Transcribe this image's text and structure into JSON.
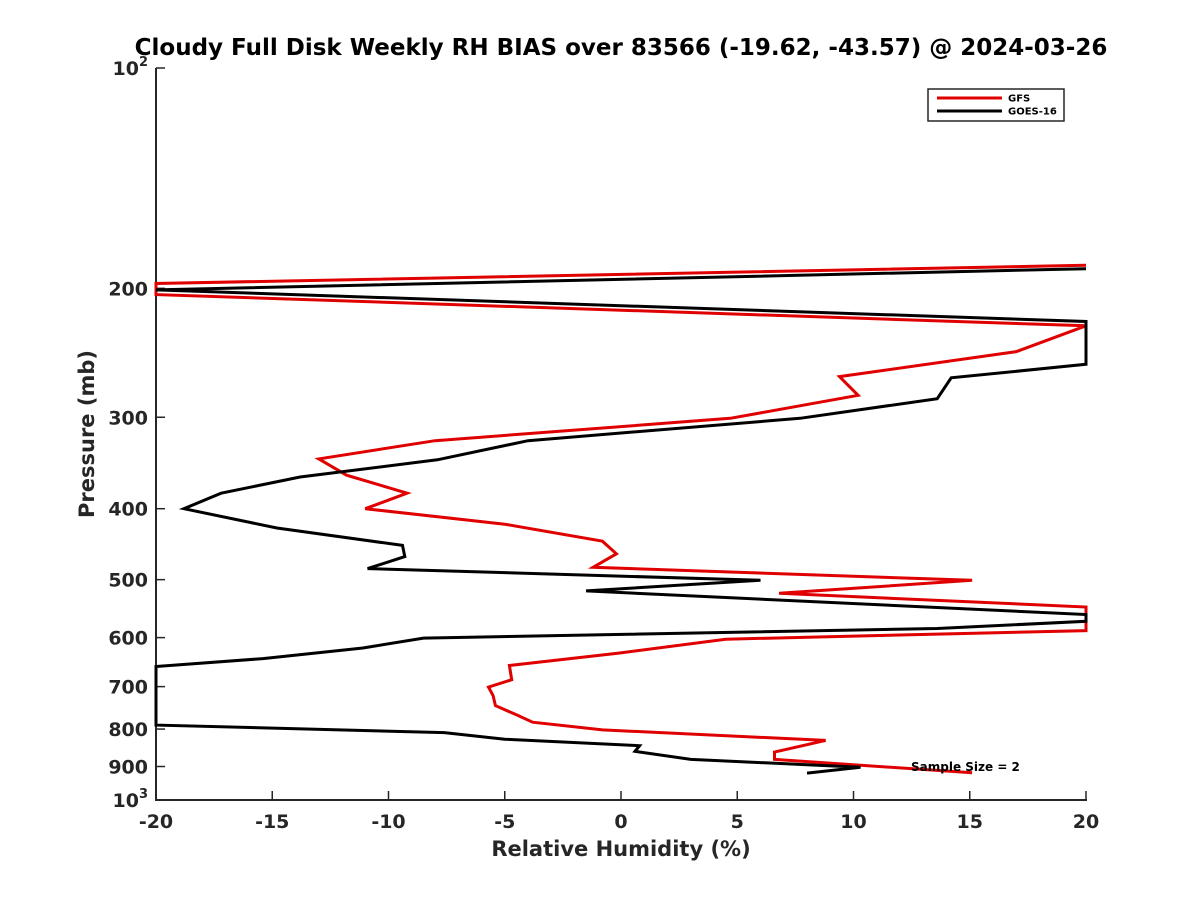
{
  "chart_data": {
    "type": "line",
    "title": "Cloudy Full Disk Weekly RH BIAS over 83566 (-19.62, -43.57) @ 2024-03-26",
    "xlabel": "Relative Humidity (%)",
    "ylabel": "Pressure (mb)",
    "xlim": [
      -20,
      20
    ],
    "ylim": [
      100,
      1000
    ],
    "y_scale": "log",
    "y_reversed": true,
    "x_ticks": [
      {
        "value": -20,
        "label": "-20"
      },
      {
        "value": -15,
        "label": "-15"
      },
      {
        "value": -10,
        "label": "-10"
      },
      {
        "value": -5,
        "label": "-5"
      },
      {
        "value": 0,
        "label": "0"
      },
      {
        "value": 5,
        "label": "5"
      },
      {
        "value": 10,
        "label": "10"
      },
      {
        "value": 15,
        "label": "15"
      },
      {
        "value": 20,
        "label": "20"
      }
    ],
    "y_ticks": [
      {
        "value": 100,
        "base": "10",
        "exp": "2"
      },
      {
        "value": 200,
        "label": "200"
      },
      {
        "value": 300,
        "label": "300"
      },
      {
        "value": 400,
        "label": "400"
      },
      {
        "value": 500,
        "label": "500"
      },
      {
        "value": 600,
        "label": "600"
      },
      {
        "value": 700,
        "label": "700"
      },
      {
        "value": 800,
        "label": "800"
      },
      {
        "value": 900,
        "label": "900"
      },
      {
        "value": 1000,
        "base": "10",
        "exp": "3"
      }
    ],
    "grid": false,
    "legend_position": "top-right",
    "series": [
      {
        "name": "GFS",
        "color": "#e00000",
        "points": [
          [
            20,
            186
          ],
          [
            -20,
            197
          ],
          [
            -20,
            204
          ],
          [
            20,
            225
          ],
          [
            17,
            244
          ],
          [
            9.4,
            264
          ],
          [
            10.2,
            280
          ],
          [
            4.7,
            301
          ],
          [
            -8,
            323
          ],
          [
            -13,
            342
          ],
          [
            -11.8,
            360
          ],
          [
            -9.2,
            381
          ],
          [
            -11,
            400
          ],
          [
            -5,
            420
          ],
          [
            -0.8,
            443
          ],
          [
            -0.2,
            461
          ],
          [
            -1.2,
            481
          ],
          [
            15.1,
            501
          ],
          [
            6.8,
            522
          ],
          [
            20,
            545
          ],
          [
            20,
            587
          ],
          [
            4.5,
            603
          ],
          [
            -0.1,
            630
          ],
          [
            -4.8,
            655
          ],
          [
            -4.7,
            685
          ],
          [
            -5.7,
            701
          ],
          [
            -5.5,
            720
          ],
          [
            -5.4,
            743
          ],
          [
            -4.5,
            765
          ],
          [
            -3.8,
            783
          ],
          [
            -0.8,
            802
          ],
          [
            8.8,
            829
          ],
          [
            6.6,
            860
          ],
          [
            6.6,
            880
          ],
          [
            15.1,
            918
          ]
        ]
      },
      {
        "name": "GOES-16",
        "color": "#000000",
        "points": [
          [
            20,
            188
          ],
          [
            -20,
            201
          ],
          [
            20,
            222
          ],
          [
            20,
            254
          ],
          [
            14.2,
            265
          ],
          [
            13.6,
            283
          ],
          [
            7.7,
            301
          ],
          [
            -4,
            323
          ],
          [
            -7.9,
            343
          ],
          [
            -13.8,
            362
          ],
          [
            -17.2,
            381
          ],
          [
            -18.8,
            400
          ],
          [
            -14.8,
            425
          ],
          [
            -9.4,
            449
          ],
          [
            -9.3,
            465
          ],
          [
            -10.9,
            483
          ],
          [
            6,
            501
          ],
          [
            -1.5,
            518
          ],
          [
            20,
            558
          ],
          [
            20,
            570
          ],
          [
            13.6,
            583
          ],
          [
            -8.5,
            601
          ],
          [
            -11.1,
            620
          ],
          [
            -15.4,
            641
          ],
          [
            -20,
            657
          ],
          [
            -20,
            790
          ],
          [
            -7.6,
            809
          ],
          [
            -5,
            826
          ],
          [
            0.8,
            843
          ],
          [
            0.6,
            858
          ],
          [
            3,
            880
          ],
          [
            10.3,
            902
          ],
          [
            8,
            919
          ]
        ]
      }
    ],
    "annotation": "Sample Size = 2"
  }
}
